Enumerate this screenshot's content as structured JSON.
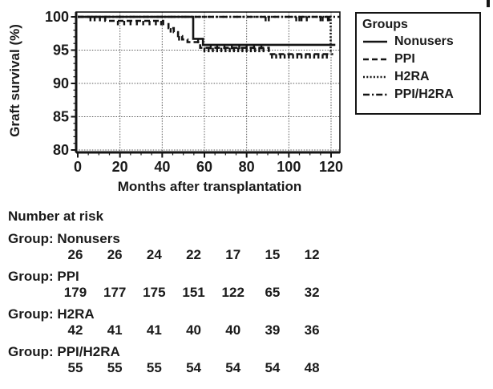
{
  "figure": {
    "background": "#ffffff",
    "text_color": "#1a1a1a",
    "line_color": "#141414",
    "grid_color": "#5a5a5a"
  },
  "chart_data": {
    "type": "line",
    "subtype": "kaplan-meier-step",
    "title": "",
    "xlabel": "Months after transplantation",
    "ylabel": "Graft survival (%)",
    "xlim": [
      0,
      120
    ],
    "ylim": [
      80,
      100
    ],
    "xticks": [
      0,
      20,
      40,
      60,
      80,
      100,
      120
    ],
    "yticks": [
      80,
      85,
      90,
      95,
      100
    ],
    "x_minor_step": 5,
    "y_minor_step": 1,
    "grid": true,
    "legend": {
      "title": "Groups",
      "position": "outside-right-top"
    },
    "series": [
      {
        "name": "Nonusers",
        "line_style": "solid",
        "points": [
          [
            0,
            100
          ],
          [
            54.7,
            100
          ],
          [
            54.7,
            96.7
          ],
          [
            59.3,
            96.7
          ],
          [
            59.3,
            95.8
          ],
          [
            122,
            95.8
          ]
        ],
        "censor_marks": [
          57,
          63,
          66,
          69.5,
          73,
          76.5,
          80,
          83.5,
          87
        ]
      },
      {
        "name": "PPI",
        "line_style": "dashed",
        "points": [
          [
            0,
            100
          ],
          [
            13,
            100
          ],
          [
            13,
            99.4
          ],
          [
            40.5,
            99.4
          ],
          [
            40.5,
            98.9
          ],
          [
            43,
            98.9
          ],
          [
            43,
            98.3
          ],
          [
            45.5,
            98.3
          ],
          [
            45.5,
            97.7
          ],
          [
            47.5,
            97.7
          ],
          [
            47.5,
            97.1
          ],
          [
            49.5,
            97.1
          ],
          [
            49.5,
            96.6
          ],
          [
            52,
            96.6
          ],
          [
            52,
            96.2
          ],
          [
            58,
            96.2
          ],
          [
            58,
            95.35
          ],
          [
            90.5,
            95.35
          ],
          [
            90.5,
            94.4
          ],
          [
            121,
            94.4
          ]
        ],
        "censor_marks": [
          8,
          10.5,
          19,
          22,
          25,
          28,
          31,
          34,
          37,
          39.5,
          44,
          48,
          60,
          62,
          64,
          66,
          68,
          70,
          72,
          74,
          76,
          78,
          80,
          82,
          84,
          86,
          88,
          92,
          94,
          96,
          98,
          100,
          102,
          104,
          106,
          108,
          110,
          112,
          114,
          116,
          118
        ]
      },
      {
        "name": "H2RA",
        "line_style": "dotted",
        "points": [
          [
            0,
            100
          ],
          [
            119.8,
            100
          ],
          [
            119.8,
            94.4
          ]
        ],
        "censor_marks": [
          89,
          103.5,
          106,
          108.5,
          116,
          118.5
        ]
      },
      {
        "name": "PPI/H2RA",
        "line_style": "dashdot",
        "points": [
          [
            0,
            100
          ],
          [
            124.2,
            100
          ]
        ],
        "censor_marks": [
          6,
          90.5,
          105,
          115,
          119
        ]
      }
    ]
  },
  "at_risk": {
    "heading": "Number at risk",
    "label_prefix": "Group: ",
    "time_points": [
      0,
      20,
      40,
      60,
      80,
      100,
      120
    ],
    "groups": [
      {
        "name": "Nonusers",
        "counts": [
          26,
          26,
          24,
          22,
          17,
          15,
          12
        ]
      },
      {
        "name": "PPI",
        "counts": [
          179,
          177,
          175,
          151,
          122,
          65,
          32
        ]
      },
      {
        "name": "H2RA",
        "counts": [
          42,
          41,
          41,
          40,
          40,
          39,
          36
        ]
      },
      {
        "name": "PPI/H2RA",
        "counts": [
          55,
          55,
          55,
          54,
          54,
          54,
          48
        ]
      }
    ]
  }
}
